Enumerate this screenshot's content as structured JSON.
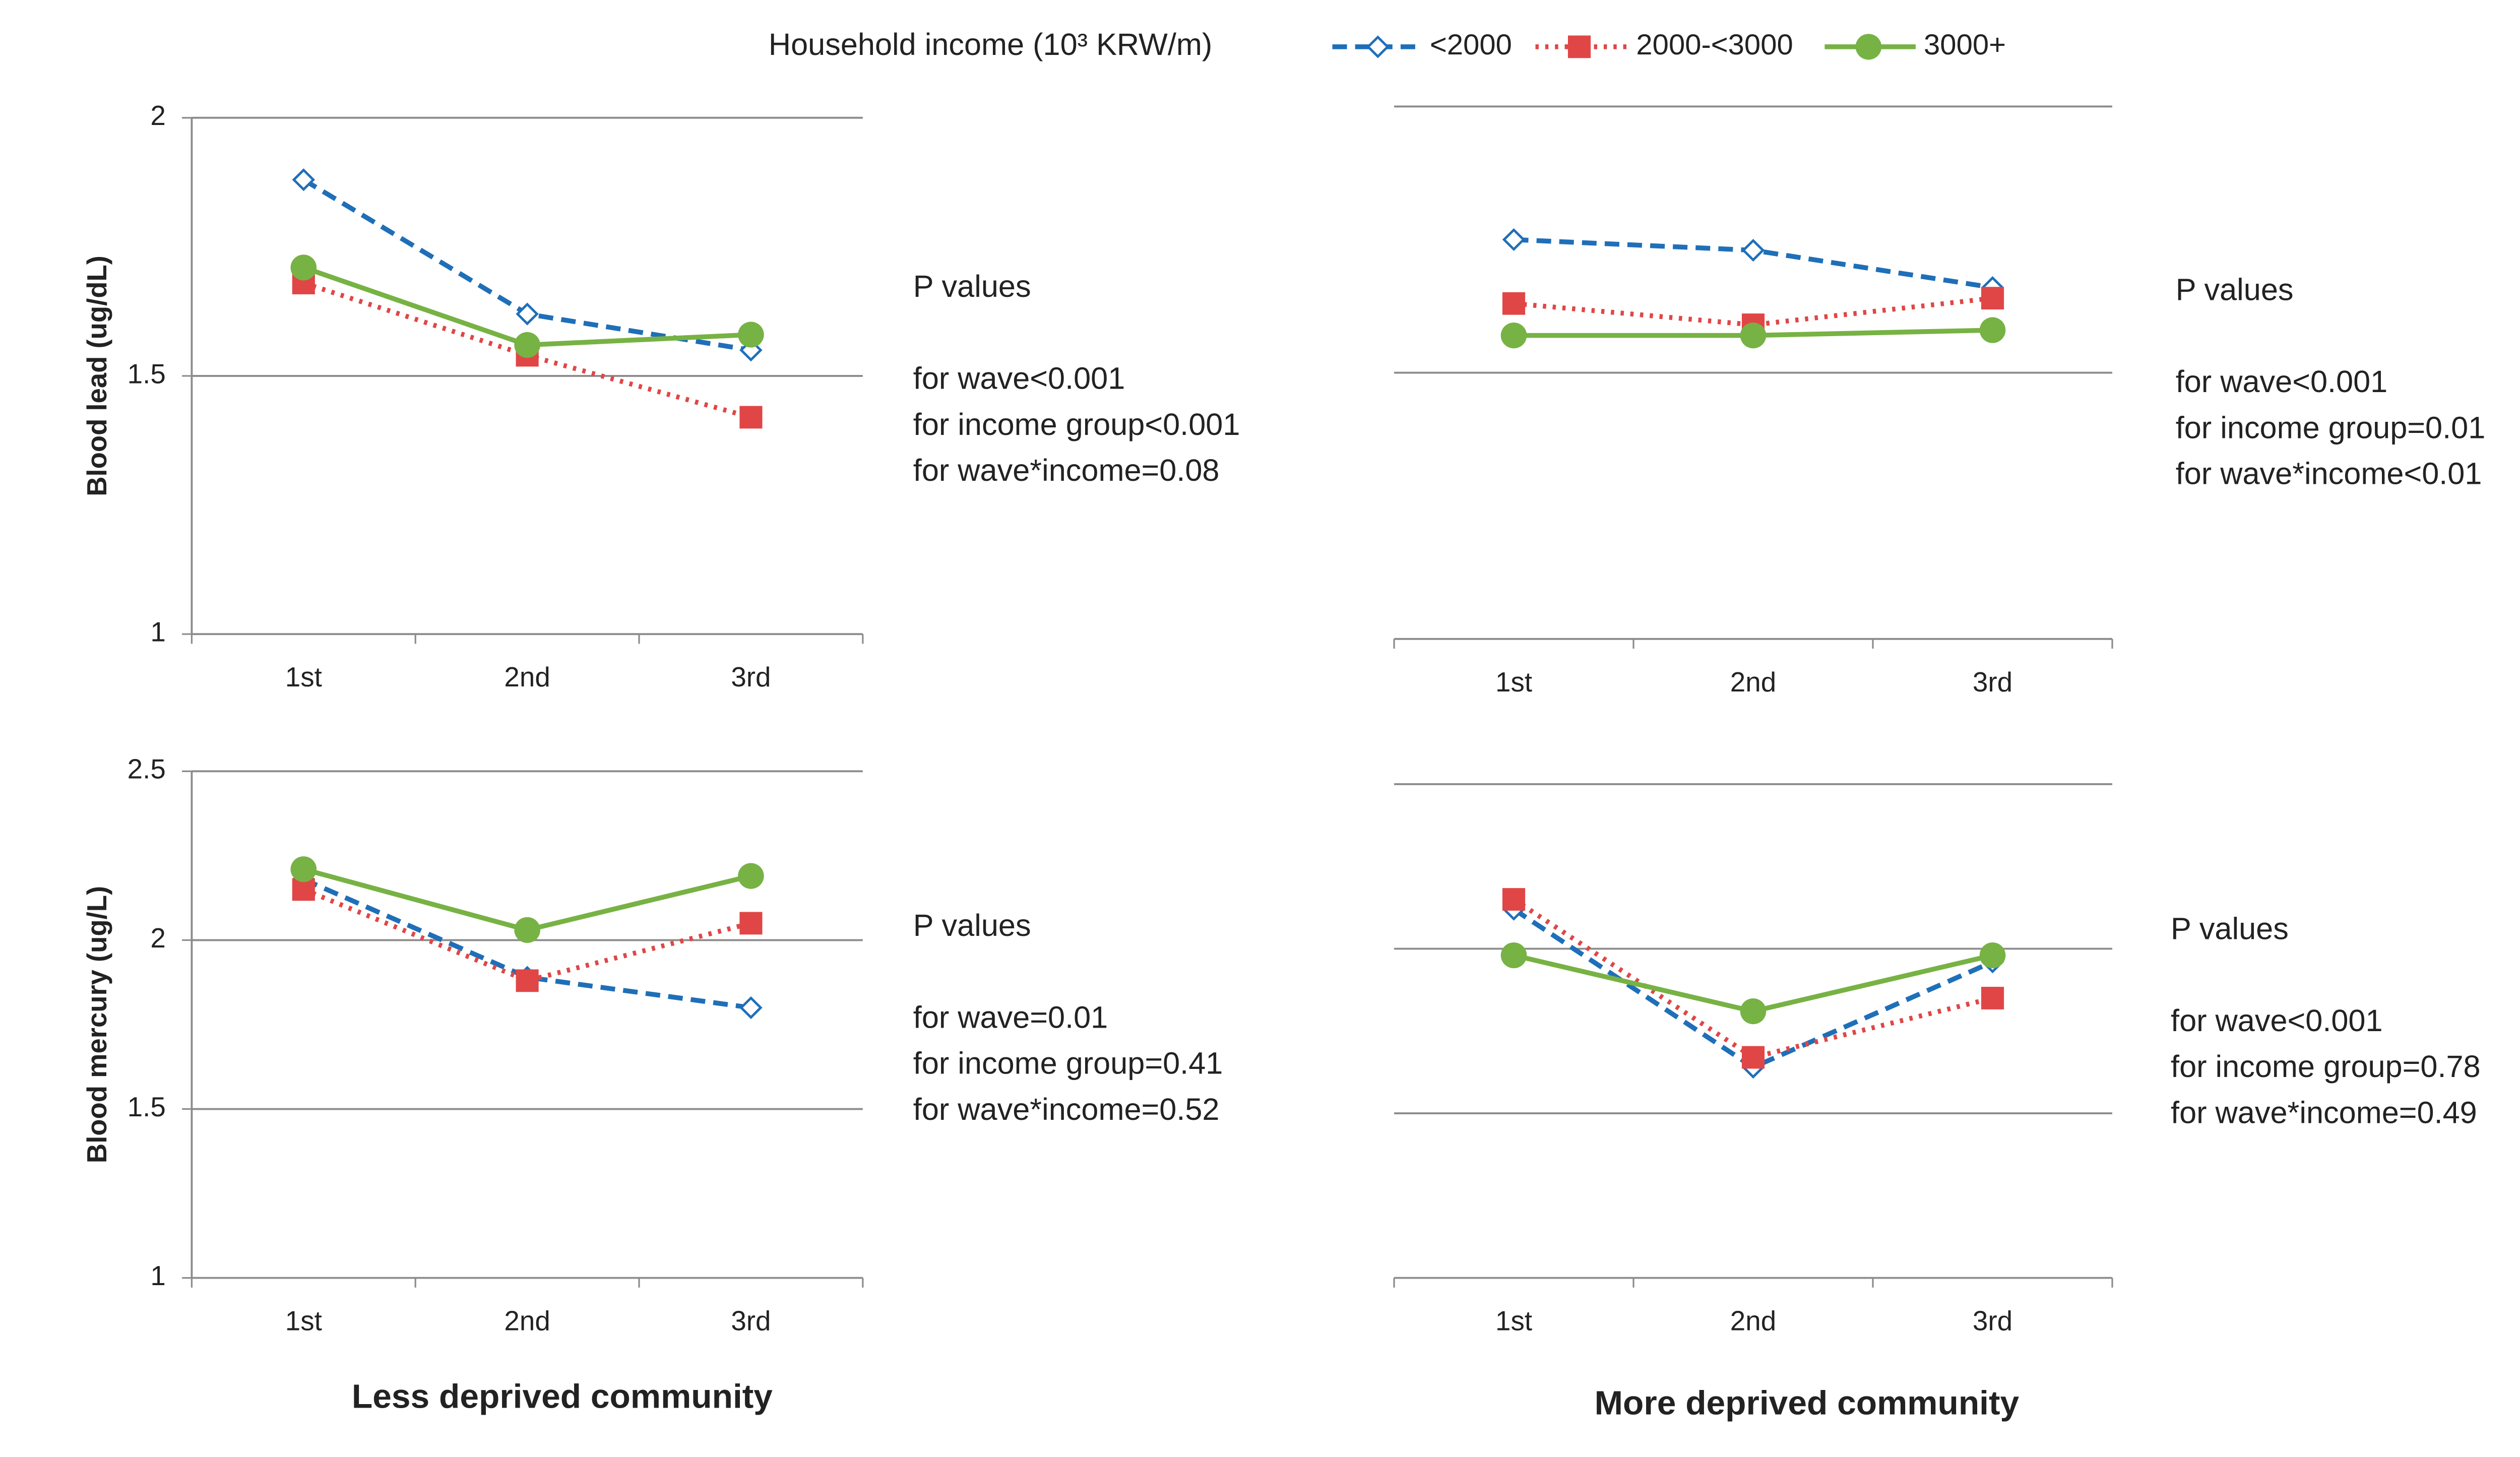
{
  "legend": {
    "title": "Household income (10³ KRW/m)"
  },
  "columns": [
    "Less deprived community",
    "More deprived community"
  ],
  "chart_data": [
    {
      "type": "line",
      "ylabel": "Blood lead (ug/dL)",
      "categories": [
        "1st",
        "2nd",
        "3rd"
      ],
      "ylim": [
        1,
        2
      ],
      "yticks": [
        1,
        1.5,
        2
      ],
      "ytick_labels": true,
      "series": [
        {
          "name": "<2000",
          "color": "#1f6fb8",
          "style": "dashed",
          "marker": "diamond",
          "values": [
            1.88,
            1.62,
            1.55
          ]
        },
        {
          "name": "2000-<3000",
          "color": "#e04646",
          "style": "dotted",
          "marker": "square",
          "values": [
            1.68,
            1.54,
            1.42
          ]
        },
        {
          "name": "3000+",
          "color": "#77b244",
          "style": "solid",
          "marker": "circle",
          "values": [
            1.71,
            1.56,
            1.58
          ]
        }
      ],
      "annotations": [
        "P values",
        "for wave<0.001",
        "for income group<0.001",
        "for wave*income=0.08"
      ]
    },
    {
      "type": "line",
      "categories": [
        "1st",
        "2nd",
        "3rd"
      ],
      "ylim": [
        1,
        2
      ],
      "yticks": [
        1,
        1.5,
        2
      ],
      "ytick_labels": false,
      "series": [
        {
          "name": "<2000",
          "color": "#1f6fb8",
          "style": "dashed",
          "marker": "diamond",
          "values": [
            1.75,
            1.73,
            1.66
          ]
        },
        {
          "name": "2000-<3000",
          "color": "#e04646",
          "style": "dotted",
          "marker": "square",
          "values": [
            1.63,
            1.59,
            1.64
          ]
        },
        {
          "name": "3000+",
          "color": "#77b244",
          "style": "solid",
          "marker": "circle",
          "values": [
            1.57,
            1.57,
            1.58
          ]
        }
      ],
      "annotations": [
        "P values",
        "for wave<0.001",
        "for income group=0.01",
        "for wave*income<0.01"
      ]
    },
    {
      "type": "line",
      "ylabel": "Blood mercury (ug/L)",
      "categories": [
        "1st",
        "2nd",
        "3rd"
      ],
      "ylim": [
        1,
        2.5
      ],
      "yticks": [
        1,
        1.5,
        2,
        2.5
      ],
      "ytick_labels": true,
      "series": [
        {
          "name": "<2000",
          "color": "#1f6fb8",
          "style": "dashed",
          "marker": "diamond",
          "values": [
            2.18,
            1.89,
            1.8
          ]
        },
        {
          "name": "2000-<3000",
          "color": "#e04646",
          "style": "dotted",
          "marker": "square",
          "values": [
            2.15,
            1.88,
            2.05
          ]
        },
        {
          "name": "3000+",
          "color": "#77b244",
          "style": "solid",
          "marker": "circle",
          "values": [
            2.21,
            2.03,
            2.19
          ]
        }
      ],
      "annotations": [
        "P values",
        "for wave=0.01",
        "for income group=0.41",
        "for wave*income=0.52"
      ]
    },
    {
      "type": "line",
      "categories": [
        "1st",
        "2nd",
        "3rd"
      ],
      "ylim": [
        1,
        2.5
      ],
      "yticks": [
        1,
        1.5,
        2,
        2.5
      ],
      "ytick_labels": false,
      "series": [
        {
          "name": "<2000",
          "color": "#1f6fb8",
          "style": "dashed",
          "marker": "diamond",
          "values": [
            2.12,
            1.64,
            1.96
          ]
        },
        {
          "name": "2000-<3000",
          "color": "#e04646",
          "style": "dotted",
          "marker": "square",
          "values": [
            2.15,
            1.67,
            1.85
          ]
        },
        {
          "name": "3000+",
          "color": "#77b244",
          "style": "solid",
          "marker": "circle",
          "values": [
            1.98,
            1.81,
            1.98
          ]
        }
      ],
      "annotations": [
        "P values",
        "for wave<0.001",
        "for income group=0.78",
        "for wave*income=0.49"
      ]
    }
  ]
}
